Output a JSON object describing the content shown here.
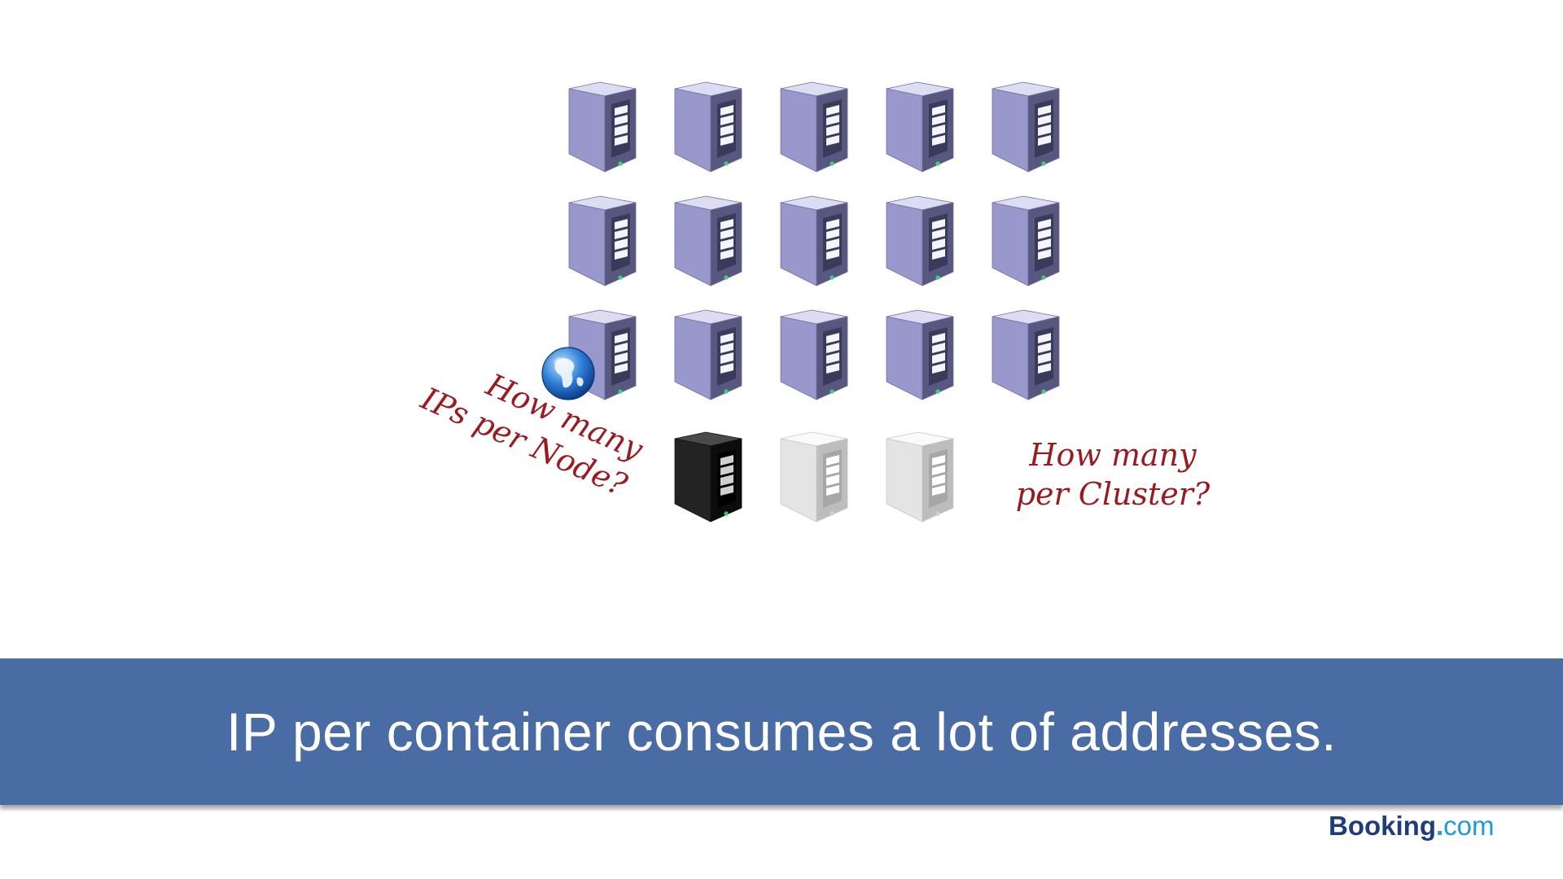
{
  "slide": {
    "notes": {
      "node_line1": "How many",
      "node_line2": "IPs per Node?",
      "cluster_line1": "How many",
      "cluster_line2": "per Cluster?"
    },
    "banner_text": "IP per container consumes a lot of addresses.",
    "logo": {
      "brand": "Booking",
      "dot": ".",
      "tld": "com"
    }
  },
  "servers": {
    "grid_rows": [
      [
        "purple",
        "purple",
        "purple",
        "purple",
        "purple"
      ],
      [
        "purple",
        "purple",
        "purple",
        "purple",
        "purple"
      ],
      [
        "purple",
        "purple",
        "purple",
        "purple",
        "purple"
      ],
      [
        "none",
        "black",
        "white",
        "white",
        "none"
      ]
    ],
    "globe_icon_on": "row-3-col-1"
  },
  "colors": {
    "banner": "#4a6ca5",
    "note_text": "#9a1b1f",
    "logo_brand": "#1f3d7a",
    "logo_tld": "#1e9ad6"
  }
}
